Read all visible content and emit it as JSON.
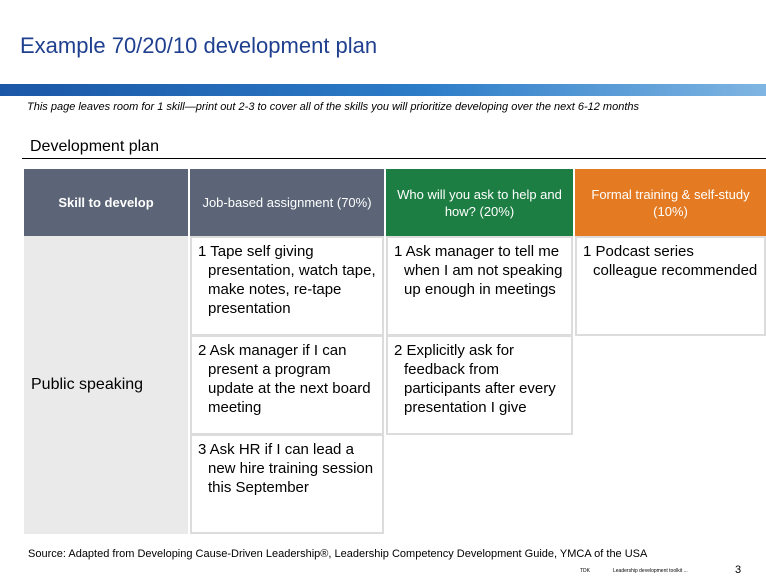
{
  "title": "Example 70/20/10 development plan",
  "subtitle": "This page leaves room for 1 skill—print out 2-3 to cover all of the skills you will prioritize developing over the next 6-12 months",
  "section_title": "Development plan",
  "headers": {
    "skill": "Skill to develop",
    "job": "Job-based assignment (70%)",
    "who": "Who will you ask to help and how? (20%)",
    "formal": "Formal training & self-study (10%)"
  },
  "skill": "Public speaking",
  "job_items": [
    "1 Tape self giving presentation, watch tape, make notes, re-tape presentation",
    "2 Ask manager if I can present a program update at the next board meeting",
    "3 Ask HR if I can lead a new hire training session this September"
  ],
  "who_items": [
    "1 Ask manager to tell me when I am not speaking up enough in meetings",
    "2 Explicitly ask for feedback from participants after every presentation I give"
  ],
  "formal_items": [
    "1 Podcast series colleague recommended"
  ],
  "source": "Source: Adapted from Developing Cause-Driven Leadership®, Leadership Competency Development Guide, YMCA of the USA",
  "footer_left": "TDK",
  "footer_right": "Leadership development toolkit ...",
  "page_number": "3",
  "colors": {
    "title": "#1f3f8f",
    "header_gray": "#5b6577",
    "header_green": "#1d7e43",
    "header_orange": "#e47b22",
    "skill_column": "#eaeaea"
  }
}
